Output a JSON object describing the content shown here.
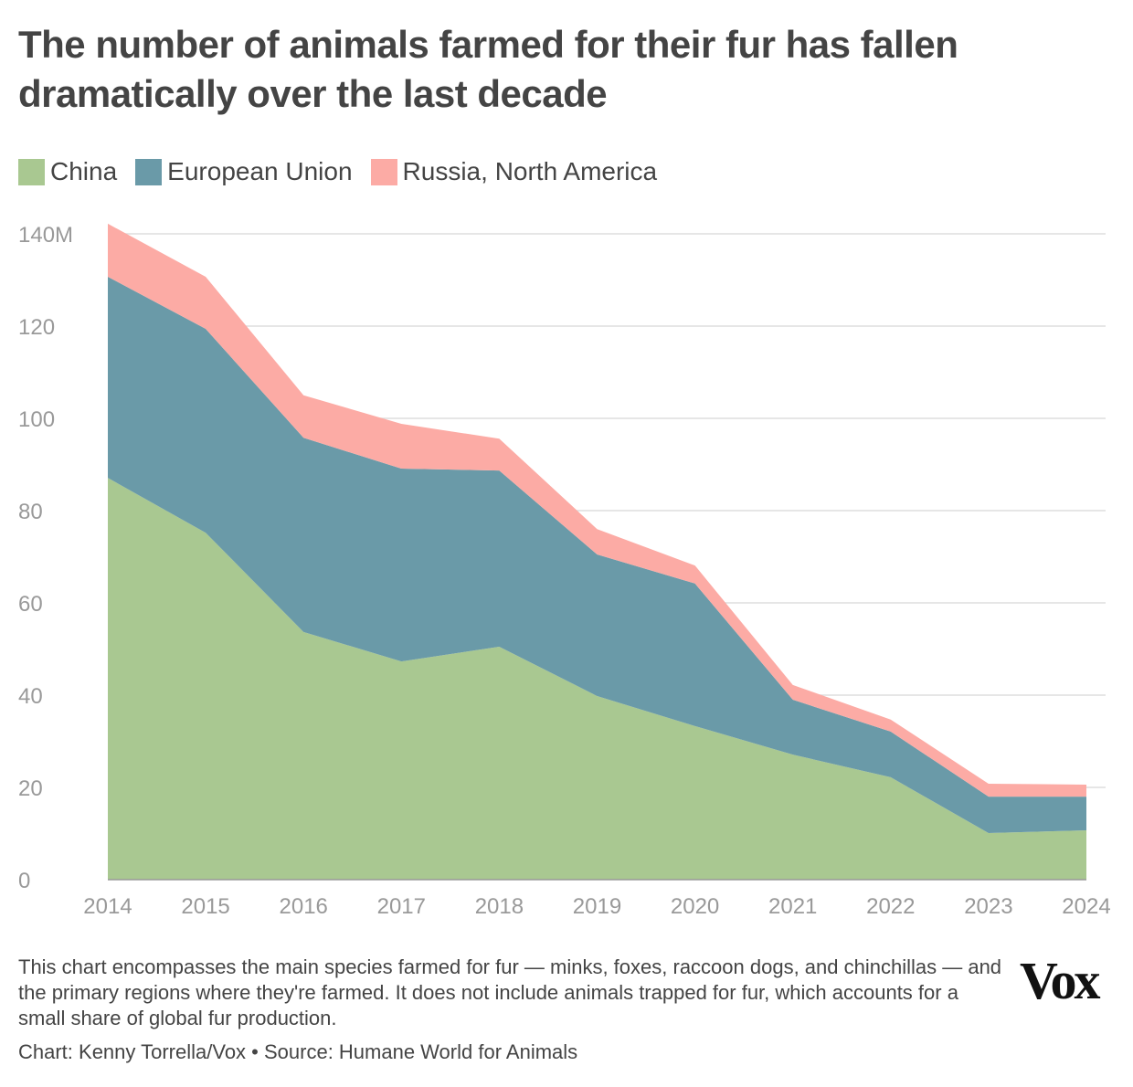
{
  "title": "The number of animals farmed for their fur has fallen dramatically over the last decade",
  "note": "This chart encompasses the main species farmed for fur — minks, foxes, raccoon dogs, and chinchillas — and the primary regions where they're farmed. It does not include animals trapped for fur, which accounts for a small share of global fur production.",
  "credit": "Chart: Kenny Torrella/Vox • Source: Humane World for Animals",
  "logo": "Vox",
  "chart_data": {
    "type": "area",
    "stacked": true,
    "x": [
      "2014",
      "2015",
      "2016",
      "2017",
      "2018",
      "2019",
      "2020",
      "2021",
      "2022",
      "2023",
      "2024"
    ],
    "series": [
      {
        "name": "China",
        "color": "#a9c891",
        "values": [
          87.1,
          75.2,
          53.7,
          47.3,
          50.5,
          39.8,
          33.3,
          27.1,
          22.2,
          10.1,
          10.7
        ]
      },
      {
        "name": "European Union",
        "color": "#6a9aa8",
        "values": [
          43.6,
          44.2,
          42.1,
          41.8,
          38.2,
          30.7,
          30.9,
          11.9,
          9.9,
          7.9,
          7.3
        ]
      },
      {
        "name": "Russia, North America",
        "color": "#fcaba5",
        "values": [
          11.5,
          11.3,
          9.2,
          9.7,
          6.9,
          5.5,
          3.9,
          3.2,
          2.6,
          2.8,
          2.6
        ]
      }
    ],
    "ylim": [
      0,
      140
    ],
    "yticks": [
      0,
      20,
      40,
      60,
      80,
      100,
      120,
      140
    ],
    "ytick_labels": [
      "0",
      "20",
      "40",
      "60",
      "80",
      "100",
      "120",
      "140M"
    ],
    "grid": true,
    "legend": "top-left",
    "xlabel": "",
    "ylabel": ""
  }
}
